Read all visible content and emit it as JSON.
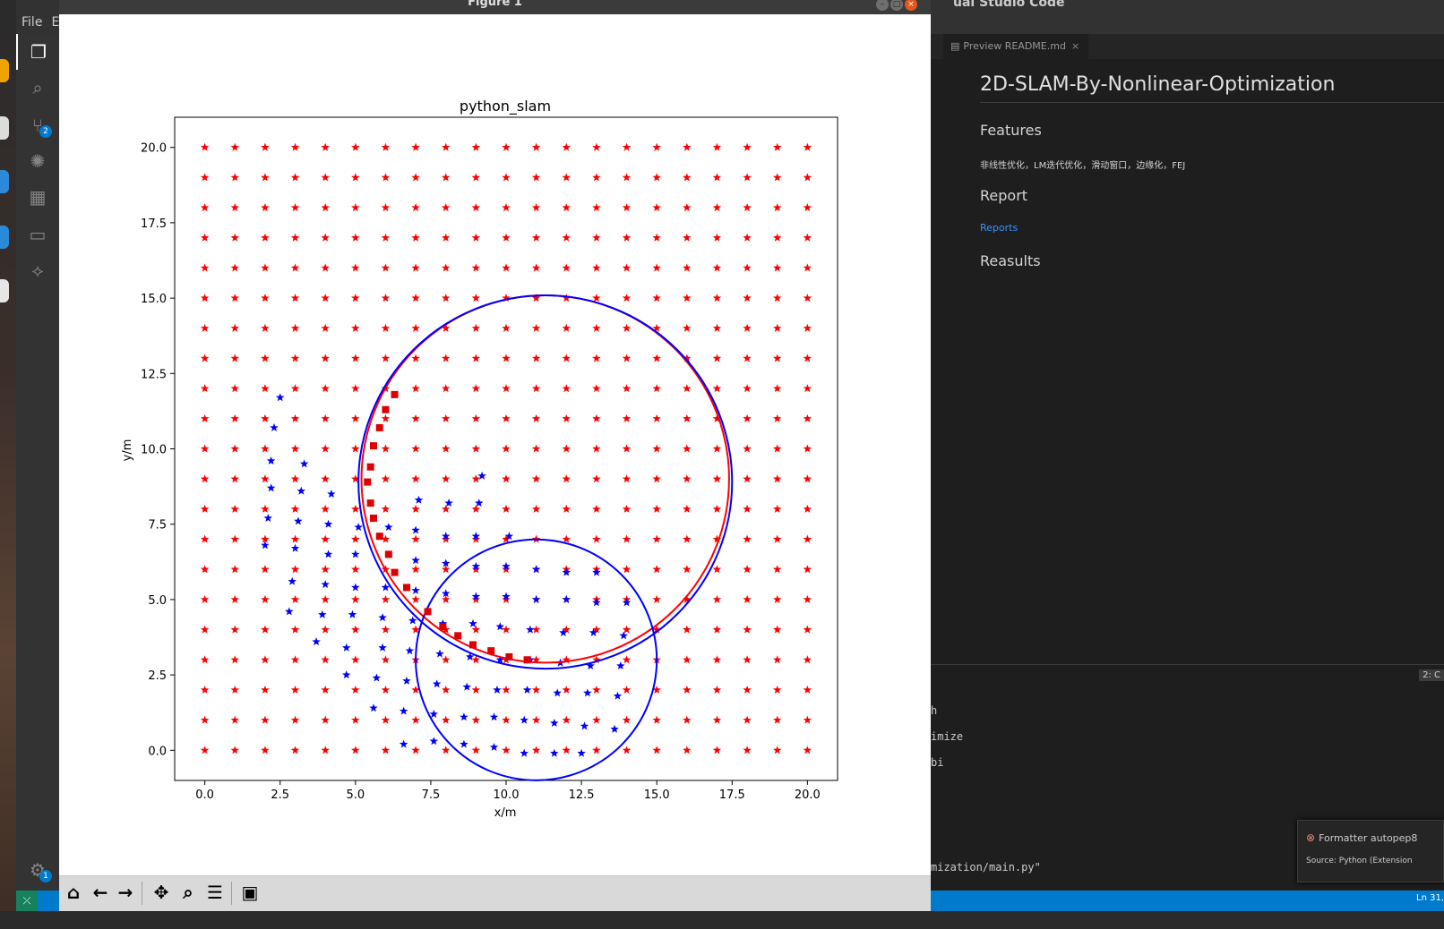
{
  "vscode": {
    "menu": [
      "File",
      "E"
    ],
    "window_title": "ual Studio Code",
    "activity_badges": {
      "scm": "2",
      "settings": "1"
    },
    "tab": {
      "label": "Preview README.md",
      "close": "×"
    },
    "preview": {
      "h1": "2D-SLAM-By-Nonlinear-Optimization",
      "features_heading": "Features",
      "features_text": "非线性优化，LM迭代优化，滑动窗口，边缘化，FEJ",
      "report_heading": "Report",
      "reports_link": "Reports",
      "results_heading": "Reasults"
    },
    "panel": {
      "terminal_tag": "2: C",
      "lines": [
        "h",
        "imize",
        "bi",
        "mization/main.py\""
      ]
    },
    "toast": {
      "title": "Formatter autopep8",
      "source": "Source: Python (Extension"
    },
    "status": {
      "position": "Ln 31,"
    }
  },
  "figure_window": {
    "title": "Figure 1",
    "toolbar": [
      "home",
      "back",
      "forward",
      "pan",
      "zoom",
      "configure-subplots",
      "save"
    ]
  },
  "chart_data": {
    "type": "scatter",
    "title": "python_slam",
    "xlabel": "x/m",
    "ylabel": "y/m",
    "xlim": [
      -1,
      21
    ],
    "ylim": [
      -1,
      21
    ],
    "xticks": [
      0,
      2.5,
      5,
      7.5,
      10,
      12.5,
      15,
      17.5,
      20
    ],
    "yticks": [
      0,
      2.5,
      5,
      7.5,
      10,
      12.5,
      15,
      17.5,
      20
    ],
    "xtick_labels": [
      "0.0",
      "2.5",
      "5.0",
      "7.5",
      "10.0",
      "12.5",
      "15.0",
      "17.5",
      "20.0"
    ],
    "ytick_labels": [
      "0.0",
      "2.5",
      "5.0",
      "7.5",
      "10.0",
      "12.5",
      "15.0",
      "17.5",
      "20.0"
    ],
    "grid": false,
    "colors": {
      "landmark": "#ff0000",
      "observation": "#0000ff",
      "traj_red": "#ff0000",
      "traj_blue": "#0000ff"
    },
    "landmarks": {
      "grid_start": 0,
      "grid_end": 20,
      "grid_step": 1,
      "marker": "red-star"
    },
    "observed_landmarks": [
      [
        2.5,
        11.7
      ],
      [
        2.3,
        10.7
      ],
      [
        2.2,
        9.6
      ],
      [
        3.3,
        9.5
      ],
      [
        2.2,
        8.7
      ],
      [
        3.2,
        8.6
      ],
      [
        4.2,
        8.5
      ],
      [
        2.1,
        7.7
      ],
      [
        3.1,
        7.6
      ],
      [
        4.1,
        7.5
      ],
      [
        5.1,
        7.4
      ],
      [
        2.0,
        6.8
      ],
      [
        3.0,
        6.7
      ],
      [
        4.1,
        6.5
      ],
      [
        5.0,
        6.5
      ],
      [
        6.1,
        7.4
      ],
      [
        7.0,
        7.3
      ],
      [
        7.1,
        8.3
      ],
      [
        8.1,
        8.2
      ],
      [
        9.1,
        8.2
      ],
      [
        9.2,
        9.1
      ],
      [
        8.0,
        7.1
      ],
      [
        9.0,
        7.1
      ],
      [
        10.1,
        7.1
      ],
      [
        7.0,
        6.3
      ],
      [
        8.0,
        6.2
      ],
      [
        9.0,
        6.1
      ],
      [
        10.0,
        6.1
      ],
      [
        11.0,
        6.0
      ],
      [
        12.0,
        5.9
      ],
      [
        13.0,
        5.9
      ],
      [
        2.9,
        5.6
      ],
      [
        4.0,
        5.5
      ],
      [
        5.0,
        5.4
      ],
      [
        6.0,
        5.4
      ],
      [
        7.0,
        5.3
      ],
      [
        8.0,
        5.2
      ],
      [
        9.0,
        5.1
      ],
      [
        10.0,
        5.1
      ],
      [
        11.0,
        5.0
      ],
      [
        12.0,
        5.0
      ],
      [
        13.0,
        4.9
      ],
      [
        14.0,
        4.9
      ],
      [
        2.8,
        4.6
      ],
      [
        3.9,
        4.5
      ],
      [
        4.9,
        4.5
      ],
      [
        5.9,
        4.4
      ],
      [
        6.9,
        4.3
      ],
      [
        7.9,
        4.2
      ],
      [
        8.9,
        4.2
      ],
      [
        9.8,
        4.1
      ],
      [
        10.8,
        4.0
      ],
      [
        11.9,
        3.9
      ],
      [
        12.9,
        3.9
      ],
      [
        13.9,
        3.8
      ],
      [
        3.7,
        3.6
      ],
      [
        4.7,
        3.4
      ],
      [
        5.9,
        3.4
      ],
      [
        6.8,
        3.3
      ],
      [
        7.8,
        3.2
      ],
      [
        8.8,
        3.1
      ],
      [
        9.8,
        3.0
      ],
      [
        10.8,
        3.0
      ],
      [
        11.8,
        2.9
      ],
      [
        12.8,
        2.8
      ],
      [
        13.8,
        2.8
      ],
      [
        4.7,
        2.5
      ],
      [
        5.7,
        2.4
      ],
      [
        6.7,
        2.3
      ],
      [
        7.7,
        2.2
      ],
      [
        8.7,
        2.1
      ],
      [
        9.7,
        2.0
      ],
      [
        10.7,
        2.0
      ],
      [
        11.7,
        1.9
      ],
      [
        12.7,
        1.9
      ],
      [
        13.7,
        1.8
      ],
      [
        5.6,
        1.4
      ],
      [
        6.6,
        1.3
      ],
      [
        7.6,
        1.2
      ],
      [
        8.6,
        1.1
      ],
      [
        9.6,
        1.1
      ],
      [
        10.6,
        1.0
      ],
      [
        11.6,
        0.9
      ],
      [
        12.6,
        0.8
      ],
      [
        13.6,
        0.7
      ],
      [
        6.6,
        0.2
      ],
      [
        7.6,
        0.3
      ],
      [
        8.6,
        0.2
      ],
      [
        9.6,
        0.1
      ],
      [
        10.6,
        -0.1
      ],
      [
        11.6,
        -0.1
      ],
      [
        12.5,
        -0.1
      ]
    ],
    "estimated_poses": [
      [
        6.3,
        11.8
      ],
      [
        6.0,
        11.3
      ],
      [
        5.8,
        10.7
      ],
      [
        5.6,
        10.1
      ],
      [
        5.5,
        9.4
      ],
      [
        5.4,
        8.9
      ],
      [
        5.5,
        8.2
      ],
      [
        5.6,
        7.7
      ],
      [
        5.8,
        7.1
      ],
      [
        6.1,
        6.5
      ],
      [
        6.3,
        5.9
      ],
      [
        6.7,
        5.4
      ],
      [
        7.4,
        4.6
      ],
      [
        7.9,
        4.1
      ],
      [
        8.4,
        3.8
      ],
      [
        8.9,
        3.5
      ],
      [
        9.5,
        3.3
      ],
      [
        10.1,
        3.1
      ],
      [
        10.7,
        3.0
      ]
    ],
    "series": [
      {
        "kind": "circle",
        "color": "traj_red",
        "center": [
          11.3,
          9.0
        ],
        "radius": 6.1
      },
      {
        "kind": "circle",
        "color": "traj_blue",
        "center": [
          11.3,
          8.9
        ],
        "radius": 6.2
      },
      {
        "kind": "circle",
        "color": "traj_blue",
        "center": [
          11.0,
          3.0
        ],
        "radius": 4.0
      }
    ]
  }
}
